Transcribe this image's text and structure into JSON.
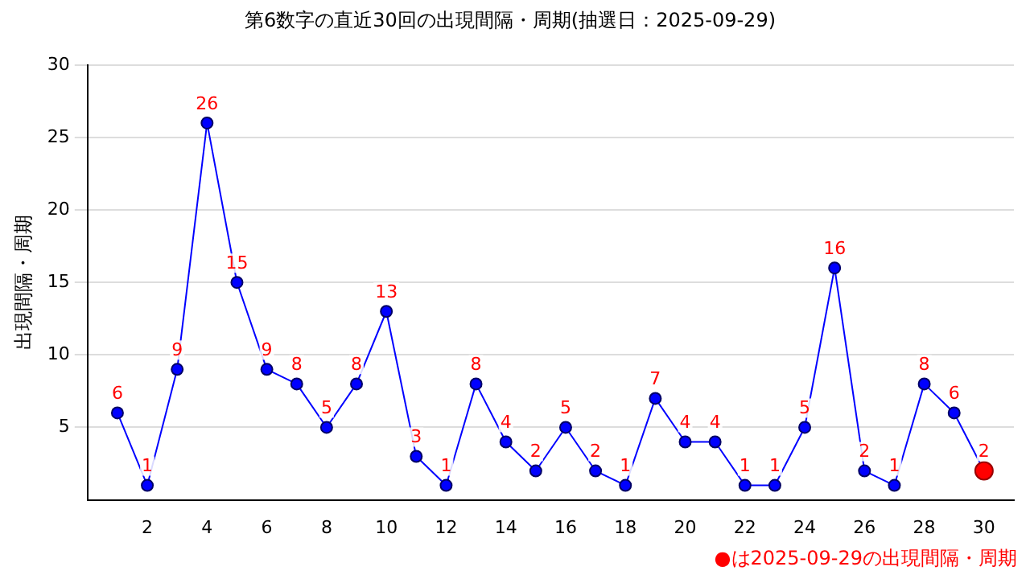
{
  "chart_data": {
    "type": "line",
    "title": "第6数字の直近30回の出現間隔・周期(抽選日：2025-09-29)",
    "ylabel": "出現間隔・周期",
    "x": [
      1,
      2,
      3,
      4,
      5,
      6,
      7,
      8,
      9,
      10,
      11,
      12,
      13,
      14,
      15,
      16,
      17,
      18,
      19,
      20,
      21,
      22,
      23,
      24,
      25,
      26,
      27,
      28,
      29,
      30
    ],
    "series": [
      {
        "color": "#0000ff",
        "values": [
          6,
          1,
          9,
          26,
          15,
          9,
          8,
          5,
          8,
          13,
          3,
          1,
          8,
          4,
          2,
          5,
          2,
          1,
          7,
          4,
          4,
          1,
          1,
          5,
          16,
          2,
          1,
          8,
          6,
          2
        ],
        "colors": [
          "#0000ff",
          "#0000ff",
          "#0000ff",
          "#0000ff",
          "#0000ff",
          "#0000ff",
          "#0000ff",
          "#0000ff",
          "#0000ff",
          "#0000ff",
          "#0000ff",
          "#0000ff",
          "#0000ff",
          "#0000ff",
          "#0000ff",
          "#0000ff",
          "#0000ff",
          "#0000ff",
          "#0000ff",
          "#0000ff",
          "#0000ff",
          "#0000ff",
          "#0000ff",
          "#0000ff",
          "#0000ff",
          "#0000ff",
          "#0000ff",
          "#0000ff",
          "#0000ff",
          "#ff0000"
        ]
      }
    ],
    "xlim": [
      0,
      31
    ],
    "xticks": [
      2,
      4,
      6,
      8,
      10,
      12,
      14,
      16,
      18,
      20,
      22,
      24,
      26,
      28,
      30
    ],
    "ylim": [
      0,
      30
    ],
    "yticks": [
      5,
      10,
      15,
      20,
      25,
      30
    ],
    "grid": "y",
    "marker": "circle",
    "line_style": "solid",
    "data_labels": true,
    "legend": false,
    "annotations": [
      "●は2025-09-29の出現間隔・周期"
    ]
  }
}
